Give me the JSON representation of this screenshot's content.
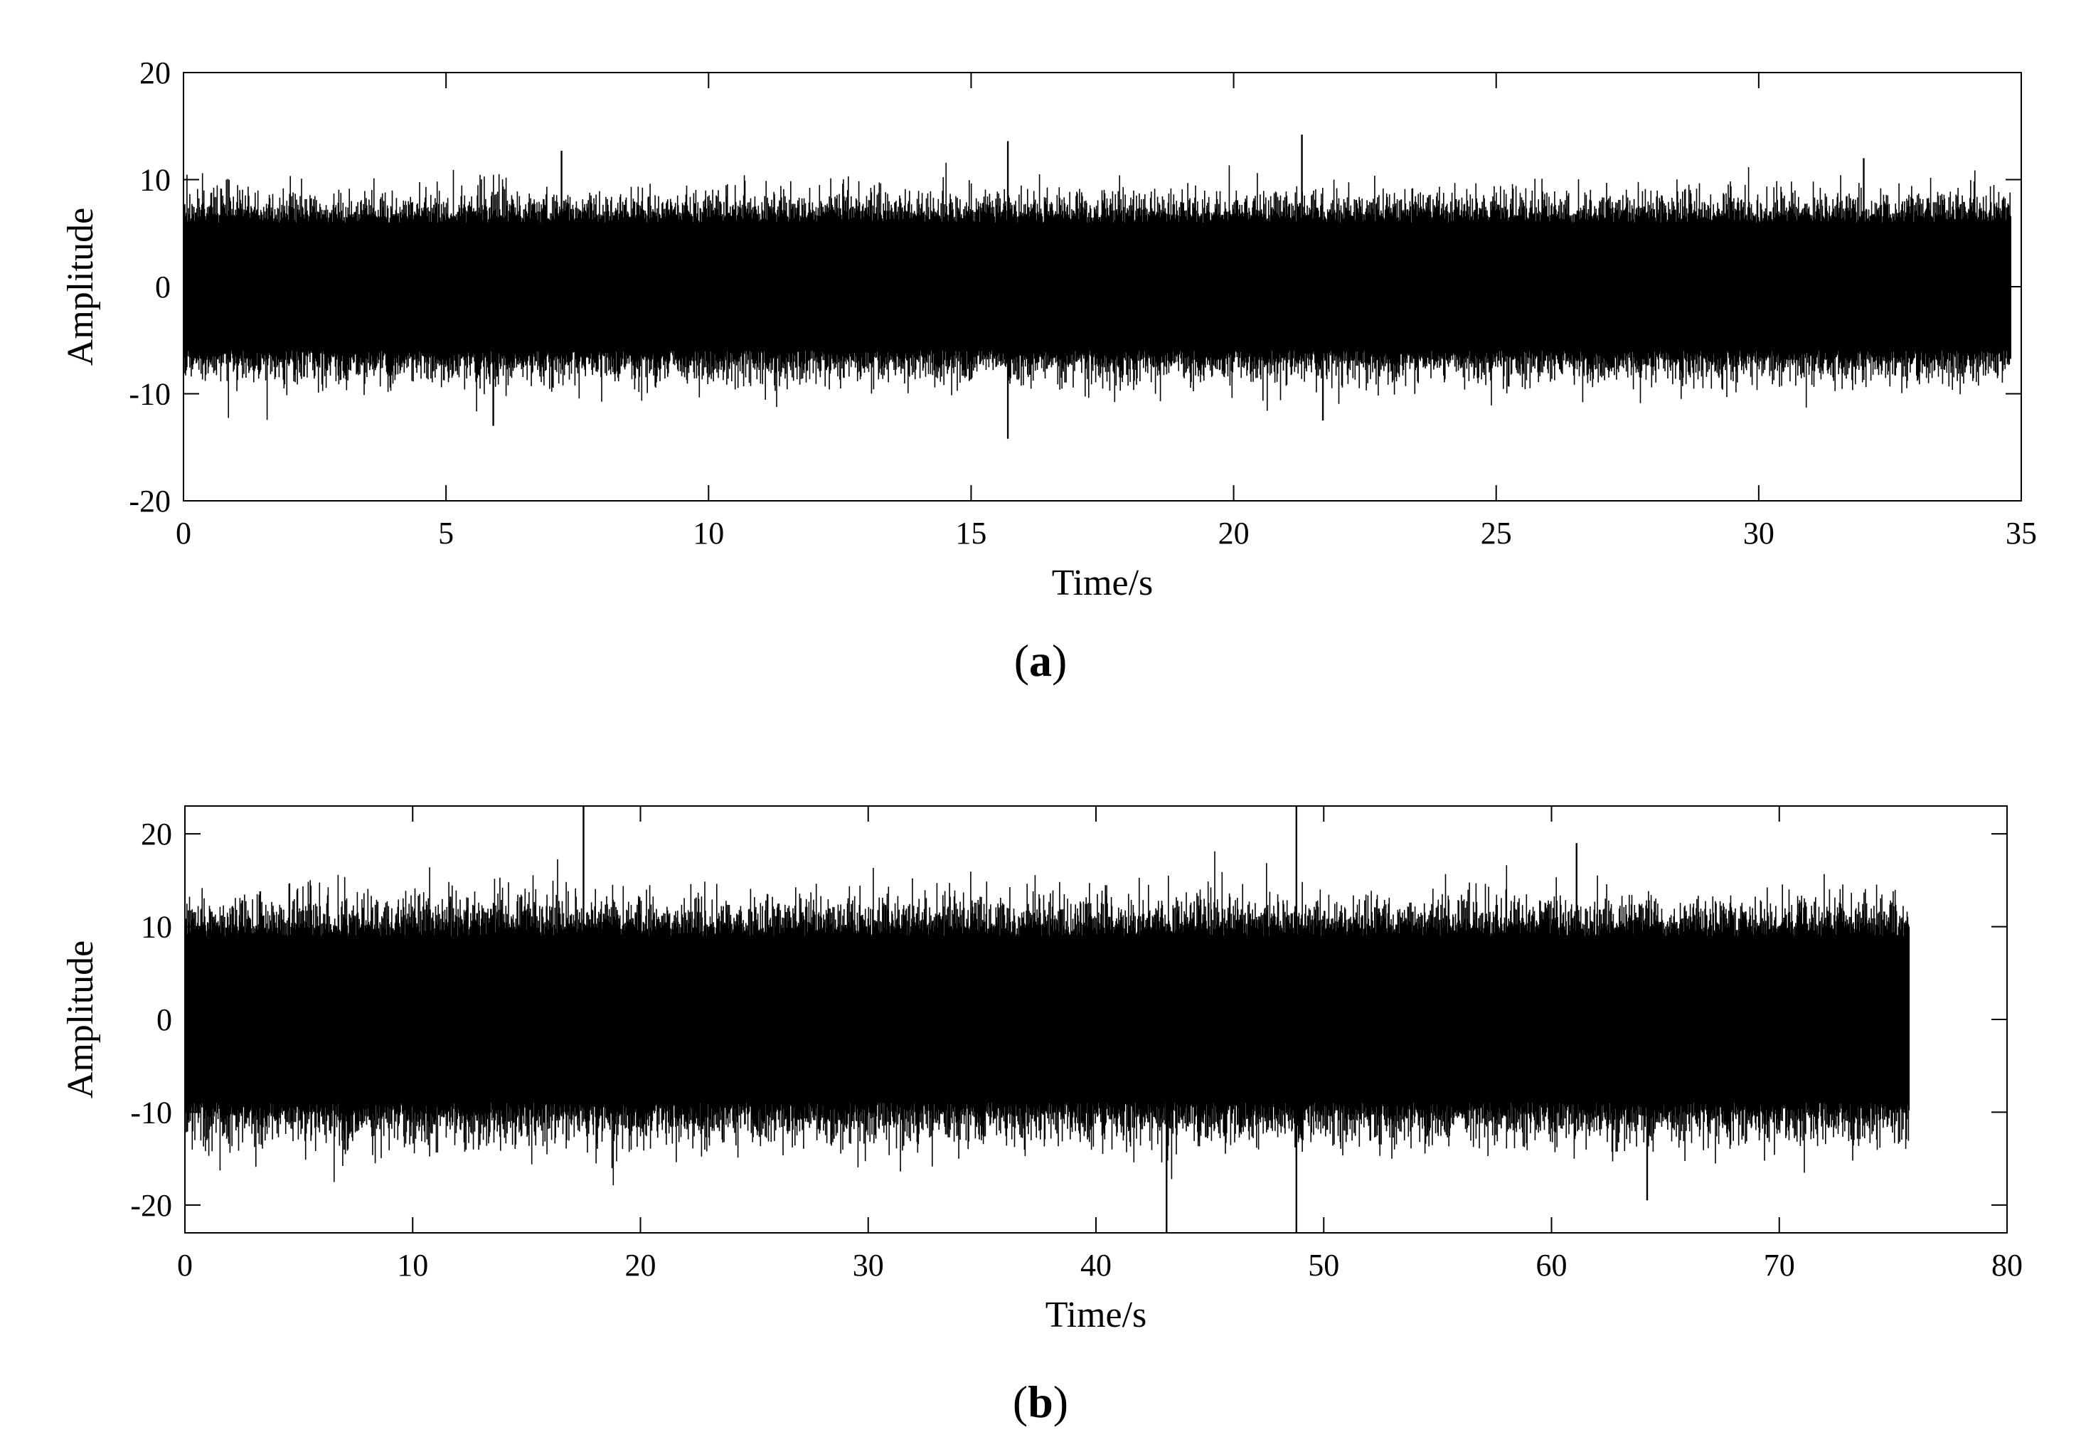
{
  "chart_data": [
    {
      "type": "line",
      "panel": "a",
      "xlabel": "Time/s",
      "ylabel": "Amplitude",
      "xlim": [
        0,
        35
      ],
      "ylim": [
        -20,
        20
      ],
      "xticks": [
        "0",
        "5",
        "10",
        "15",
        "20",
        "25",
        "30",
        "35"
      ],
      "yticks": [
        "20",
        "10",
        "0",
        "-10",
        "-20"
      ],
      "signal": {
        "t_end": 34.8,
        "typical_envelope": [
          -8,
          8
        ],
        "max": 14.2,
        "min": -14.2
      },
      "peaks": [
        {
          "x": 5.9,
          "y": -13.0
        },
        {
          "x": 7.2,
          "y": 12.7
        },
        {
          "x": 15.7,
          "y": 13.6
        },
        {
          "x": 15.7,
          "y": -14.2
        },
        {
          "x": 21.3,
          "y": 14.2
        },
        {
          "x": 21.7,
          "y": -12.5
        },
        {
          "x": 32.0,
          "y": 12.0
        }
      ],
      "color": "#000000"
    },
    {
      "type": "line",
      "panel": "b",
      "xlabel": "Time/s",
      "ylabel": "Amplitude",
      "xlim": [
        0,
        80
      ],
      "ylim": [
        -23,
        23
      ],
      "xticks": [
        "0",
        "10",
        "20",
        "30",
        "40",
        "50",
        "60",
        "70",
        "80"
      ],
      "yticks": [
        "20",
        "10",
        "0",
        "-10",
        "-20"
      ],
      "signal": {
        "t_end": 75.7,
        "typical_envelope": [
          -12,
          12
        ],
        "max": 23,
        "min": -23
      },
      "peaks": [
        {
          "x": 17.5,
          "y": 23.0
        },
        {
          "x": 43.1,
          "y": -23.0
        },
        {
          "x": 48.8,
          "y": 23.0
        },
        {
          "x": 48.8,
          "y": -23.0
        },
        {
          "x": 61.1,
          "y": 19.0
        },
        {
          "x": 64.2,
          "y": -19.5
        }
      ],
      "color": "#000000"
    }
  ],
  "captions": {
    "a_open": "(",
    "a_letter": "a",
    "a_close": ")",
    "b_open": "(",
    "b_letter": "b",
    "b_close": ")"
  }
}
